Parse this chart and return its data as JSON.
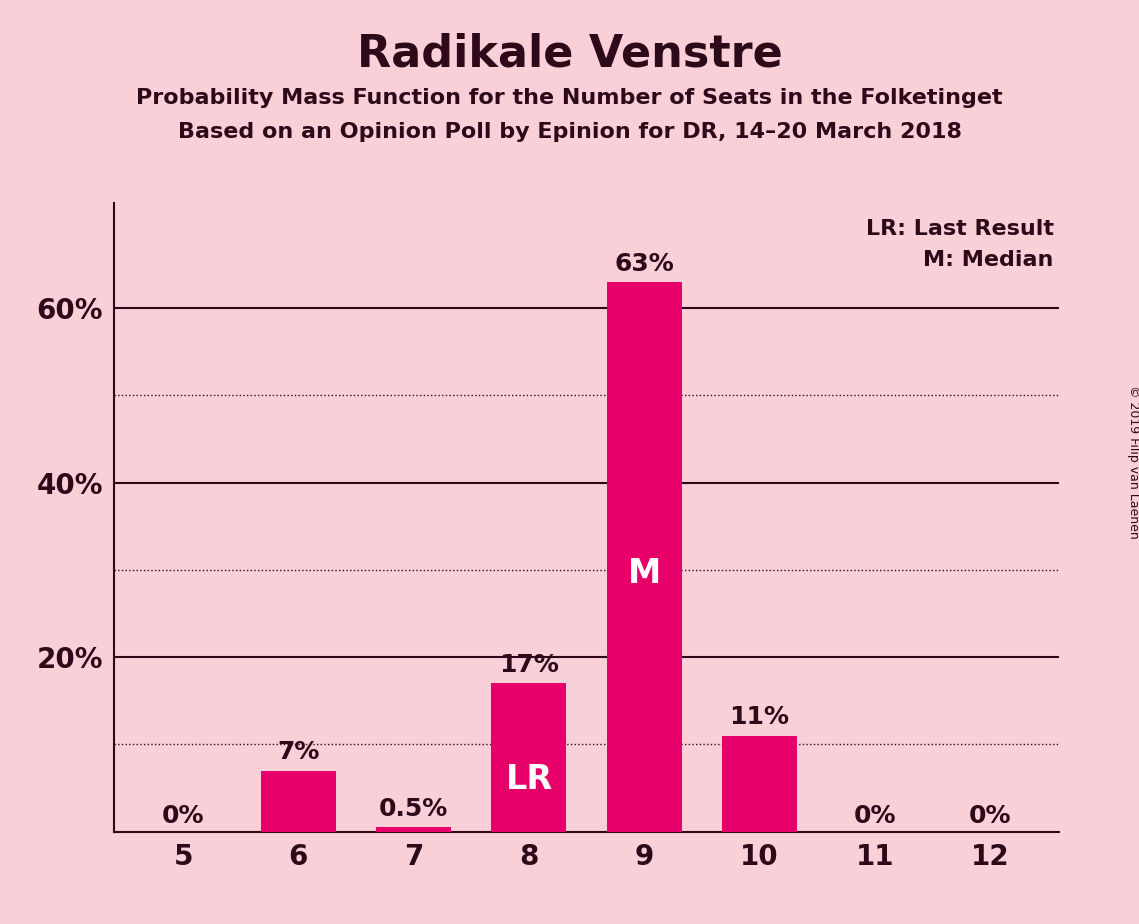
{
  "title": "Radikale Venstre",
  "subtitle1": "Probability Mass Function for the Number of Seats in the Folketinget",
  "subtitle2": "Based on an Opinion Poll by Epinion for DR, 14–20 March 2018",
  "categories": [
    5,
    6,
    7,
    8,
    9,
    10,
    11,
    12
  ],
  "values": [
    0.0,
    0.07,
    0.005,
    0.17,
    0.63,
    0.11,
    0.0,
    0.0
  ],
  "bar_color": "#E8006A",
  "background_color": "#F9D0D8",
  "text_color": "#2d0a1a",
  "bar_labels": [
    "0%",
    "7%",
    "0.5%",
    "17%",
    "63%",
    "11%",
    "0%",
    "0%"
  ],
  "solid_grid": [
    0.2,
    0.4,
    0.6
  ],
  "dotted_grid": [
    0.1,
    0.3,
    0.5
  ],
  "ytick_positions": [
    0.2,
    0.4,
    0.6
  ],
  "ytick_labels": [
    "20%",
    "40%",
    "60%"
  ],
  "legend_text1": "LR: Last Result",
  "legend_text2": "M: Median",
  "copyright_text": "© 2019 Filip van Laenen",
  "ylim": [
    0,
    0.72
  ],
  "xlim": [
    4.4,
    12.6
  ],
  "bar_width": 0.65,
  "title_fontsize": 32,
  "subtitle_fontsize": 16,
  "tick_fontsize": 20,
  "label_fontsize": 18,
  "inside_label_fontsize": 24,
  "legend_fontsize": 16
}
